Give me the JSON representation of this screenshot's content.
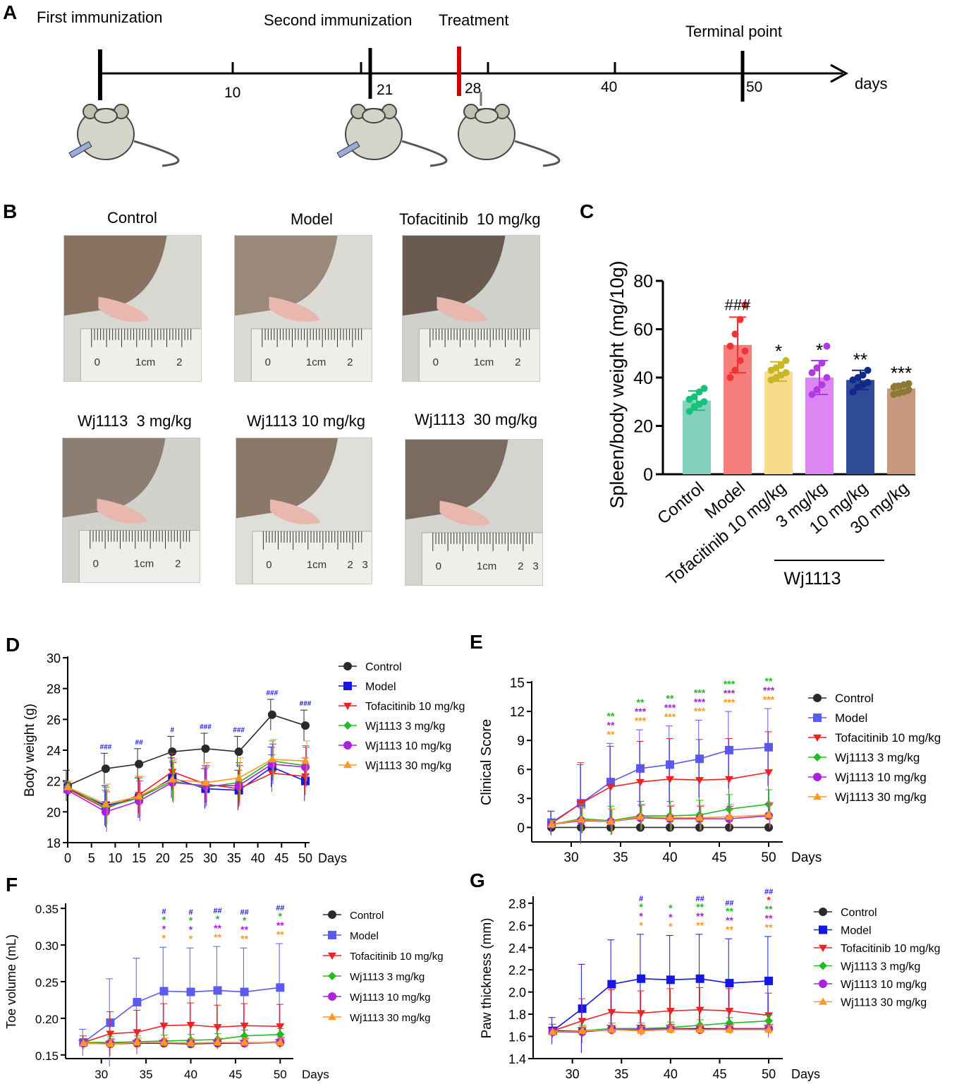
{
  "panels": {
    "A": {
      "letter": "A",
      "events": [
        "First immunization",
        "Second immunization",
        "Treatment",
        "Terminal point"
      ],
      "ticks": [
        "10",
        "21",
        "28",
        "40",
        "50"
      ],
      "axis_unit": "days"
    },
    "B": {
      "letter": "B",
      "titles": [
        "Control",
        "Model",
        "Tofacitinib  10 mg/kg",
        "Wj1113  3 mg/kg",
        "Wj1113 10 mg/kg",
        "Wj1113  30 mg/kg"
      ],
      "ruler_texts": [
        "0",
        "1cm",
        "2",
        "3"
      ]
    },
    "C": {
      "letter": "C"
    },
    "D": {
      "letter": "D"
    },
    "E": {
      "letter": "E"
    },
    "F": {
      "letter": "F"
    },
    "G": {
      "letter": "G"
    }
  },
  "colors": {
    "control": "#3a3a3a",
    "model": "#1a1aee",
    "model_light": "#6a6af0",
    "tofa": "#ee2222",
    "wj3": "#22bb22",
    "wj10": "#aa22dd",
    "wj30": "#ff9922",
    "red_marker": "#cc0000"
  },
  "chart_data": [
    {
      "id": "C",
      "type": "bar",
      "categories": [
        "Control",
        "Model",
        "Tofacitinib 10 mg/kg",
        "3 mg/kg",
        "10 mg/kg",
        "30 mg/kg"
      ],
      "values": [
        30.5,
        53.5,
        42.5,
        40,
        39,
        35.5
      ],
      "errors": [
        4,
        11.5,
        4,
        7,
        4,
        2
      ],
      "bar_colors": [
        "#86d1bd",
        "#f77c7c",
        "#f8dc8e",
        "#dc86f4",
        "#2f4a96",
        "#c99880"
      ],
      "point_colors": [
        "#15c27a",
        "#ee3434",
        "#c9b824",
        "#b23ae0",
        "#12288a",
        "#8a7a34"
      ],
      "points": [
        [
          26,
          28,
          29,
          30,
          31,
          32,
          34,
          35.5
        ],
        [
          40,
          43,
          47,
          51,
          53,
          58,
          64,
          70
        ],
        [
          39,
          40,
          41,
          42,
          43,
          44,
          45,
          47
        ],
        [
          33,
          35,
          37,
          40,
          42,
          44,
          46,
          53
        ],
        [
          34,
          36,
          37,
          38,
          39,
          40,
          41,
          43
        ],
        [
          33,
          33.5,
          34,
          35,
          36,
          36.5,
          37,
          37.5
        ]
      ],
      "annotations": [
        "",
        "###",
        "*",
        "*",
        "**",
        "***"
      ],
      "ylabel": "Spleen/body weight (mg/10g)",
      "yticks": [
        "0",
        "20",
        "40",
        "60",
        "80"
      ],
      "ylim": [
        0,
        80
      ],
      "group_label": "Wj1113"
    },
    {
      "id": "D",
      "type": "line",
      "x": [
        0,
        8,
        15,
        22,
        29,
        36,
        43,
        50
      ],
      "xticks": [
        "0",
        "5",
        "10",
        "15",
        "20",
        "25",
        "30",
        "35",
        "40",
        "45",
        "50"
      ],
      "yticks": [
        "18",
        "20",
        "22",
        "24",
        "26",
        "28",
        "30"
      ],
      "xlim": [
        0,
        50
      ],
      "ylim": [
        18,
        30
      ],
      "xlabel": "Days",
      "ylabel": "Body weight (g)",
      "series": [
        {
          "name": "Control",
          "values": [
            21.7,
            22.8,
            23.1,
            23.9,
            24.1,
            23.9,
            26.3,
            25.6
          ],
          "err": 1.0
        },
        {
          "name": "Model",
          "values": [
            21.5,
            20.4,
            20.9,
            22.2,
            21.5,
            21.4,
            22.9,
            22.0
          ],
          "err": 1.3
        },
        {
          "name": "Tofacitinib 10 mg/kg",
          "values": [
            21.5,
            20.2,
            21.1,
            22.6,
            21.8,
            21.5,
            22.5,
            22.3
          ],
          "err": 1.2
        },
        {
          "name": "Wj1113 3 mg/kg",
          "values": [
            21.6,
            20.3,
            20.9,
            22.0,
            21.6,
            21.9,
            23.3,
            23.0
          ],
          "err": 1.3
        },
        {
          "name": "Wj1113 10 mg/kg",
          "values": [
            21.4,
            20.0,
            20.7,
            21.9,
            21.7,
            21.7,
            23.1,
            22.9
          ],
          "err": 1.3
        },
        {
          "name": "Wj1113 30 mg/kg",
          "values": [
            21.6,
            20.5,
            21.0,
            22.1,
            21.9,
            22.2,
            23.4,
            23.3
          ],
          "err": 1.3
        }
      ],
      "annotations": [
        "",
        "###",
        "##",
        "#",
        "###",
        "###",
        "###",
        "###"
      ]
    },
    {
      "id": "E",
      "type": "line",
      "x": [
        28,
        31,
        34,
        37,
        40,
        43,
        46,
        50
      ],
      "xticks": [
        "30",
        "35",
        "40",
        "45",
        "50"
      ],
      "yticks": [
        "0",
        "3",
        "6",
        "9",
        "12",
        "15"
      ],
      "xlim": [
        26,
        51
      ],
      "ylim": [
        -1.5,
        15
      ],
      "xlabel": "Days",
      "ylabel": "Clinical Score",
      "series": [
        {
          "name": "Control",
          "values": [
            0,
            0,
            0,
            0,
            0,
            0,
            0,
            0
          ],
          "err": 0
        },
        {
          "name": "Model",
          "values": [
            0.5,
            2.5,
            4.7,
            6.1,
            6.5,
            7.1,
            8.0,
            8.3
          ],
          "err": 4.0
        },
        {
          "name": "Tofacitinib 10 mg/kg",
          "values": [
            0.4,
            2.5,
            4.2,
            4.7,
            5.0,
            4.9,
            5.0,
            5.7
          ],
          "err": 4.2
        },
        {
          "name": "Wj1113 3 mg/kg",
          "values": [
            0.3,
            0.9,
            0.7,
            1.2,
            1.2,
            1.3,
            1.9,
            2.4
          ],
          "err": 1.5
        },
        {
          "name": "Wj1113 10 mg/kg",
          "values": [
            0.3,
            0.7,
            0.6,
            1.0,
            0.9,
            0.9,
            0.9,
            1.2
          ],
          "err": 1.3
        },
        {
          "name": "Wj1113 30 mg/kg",
          "values": [
            0.3,
            0.8,
            0.6,
            1.1,
            1.0,
            1.0,
            1.1,
            1.3
          ],
          "err": 1.3
        }
      ],
      "annotations": [
        [],
        [],
        [
          "**",
          "**",
          "**"
        ],
        [
          "**",
          "***",
          "***"
        ],
        [
          "**",
          "***",
          "***"
        ],
        [
          "***",
          "***",
          "***"
        ],
        [
          "***",
          "***",
          "***"
        ],
        [
          "**",
          "***",
          "***"
        ]
      ]
    },
    {
      "id": "F",
      "type": "line",
      "x": [
        28,
        31,
        34,
        37,
        40,
        43,
        46,
        50
      ],
      "xticks": [
        "30",
        "35",
        "40",
        "45",
        "50"
      ],
      "yticks": [
        "0.15",
        "0.20",
        "0.25",
        "0.30",
        "0.35"
      ],
      "xlim": [
        26,
        51
      ],
      "ylim": [
        0.145,
        0.355
      ],
      "xlabel": "Days",
      "ylabel": "Toe volume (mL)",
      "series": [
        {
          "name": "Control",
          "values": [
            0.166,
            0.165,
            0.166,
            0.166,
            0.165,
            0.166,
            0.166,
            0.167
          ],
          "err": 0.004
        },
        {
          "name": "Model",
          "values": [
            0.167,
            0.194,
            0.222,
            0.237,
            0.236,
            0.238,
            0.236,
            0.242
          ],
          "err": 0.06
        },
        {
          "name": "Tofacitinib 10 mg/kg",
          "values": [
            0.167,
            0.179,
            0.181,
            0.19,
            0.191,
            0.188,
            0.19,
            0.189
          ],
          "err": 0.03
        },
        {
          "name": "Wj1113 3 mg/kg",
          "values": [
            0.167,
            0.167,
            0.168,
            0.169,
            0.17,
            0.171,
            0.176,
            0.178
          ],
          "err": 0.008
        },
        {
          "name": "Wj1113 10 mg/kg",
          "values": [
            0.166,
            0.166,
            0.167,
            0.167,
            0.166,
            0.167,
            0.166,
            0.168
          ],
          "err": 0.006
        },
        {
          "name": "Wj1113 30 mg/kg",
          "values": [
            0.166,
            0.165,
            0.167,
            0.167,
            0.166,
            0.167,
            0.167,
            0.167
          ],
          "err": 0.006
        }
      ],
      "annotations": [
        [],
        [],
        [],
        [
          "#",
          "*",
          "*",
          "*"
        ],
        [
          "#",
          "*",
          "*",
          "*"
        ],
        [
          "##",
          "*",
          "**",
          "**"
        ],
        [
          "##",
          "*",
          "**",
          "**"
        ],
        [
          "##",
          "*",
          "**",
          "**"
        ]
      ]
    },
    {
      "id": "G",
      "type": "line",
      "x": [
        28,
        31,
        34,
        37,
        40,
        43,
        46,
        50
      ],
      "xticks": [
        "30",
        "35",
        "40",
        "45",
        "50"
      ],
      "yticks": [
        "1.4",
        "1.6",
        "1.8",
        "2.0",
        "2.2",
        "2.4",
        "2.6",
        "2.8"
      ],
      "xlim": [
        26,
        51
      ],
      "ylim": [
        1.4,
        2.85
      ],
      "xlabel": "Days",
      "ylabel": "Paw thickness (mm)",
      "series": [
        {
          "name": "Control",
          "values": [
            1.65,
            1.65,
            1.67,
            1.67,
            1.67,
            1.67,
            1.67,
            1.67
          ],
          "err": 0.03
        },
        {
          "name": "Model",
          "values": [
            1.65,
            1.85,
            2.07,
            2.12,
            2.11,
            2.12,
            2.08,
            2.1
          ],
          "err": 0.4
        },
        {
          "name": "Tofacitinib 10 mg/kg",
          "values": [
            1.65,
            1.74,
            1.82,
            1.81,
            1.83,
            1.84,
            1.83,
            1.79
          ],
          "err": 0.2
        },
        {
          "name": "Wj1113 3 mg/kg",
          "values": [
            1.64,
            1.65,
            1.67,
            1.67,
            1.68,
            1.7,
            1.72,
            1.74
          ],
          "err": 0.05
        },
        {
          "name": "Wj1113 10 mg/kg",
          "values": [
            1.64,
            1.64,
            1.66,
            1.66,
            1.67,
            1.66,
            1.67,
            1.67
          ],
          "err": 0.04
        },
        {
          "name": "Wj1113 30 mg/kg",
          "values": [
            1.64,
            1.65,
            1.66,
            1.65,
            1.66,
            1.66,
            1.66,
            1.66
          ],
          "err": 0.04
        }
      ],
      "annotations": [
        [],
        [],
        [],
        [
          "#",
          "*",
          "*",
          "*"
        ],
        [
          "",
          "*",
          "*",
          "*"
        ],
        [
          "##",
          "**",
          "**",
          "**"
        ],
        [
          "##",
          "**",
          "**",
          "**"
        ],
        [
          "##",
          "*",
          "**",
          "**",
          "**"
        ]
      ]
    }
  ]
}
